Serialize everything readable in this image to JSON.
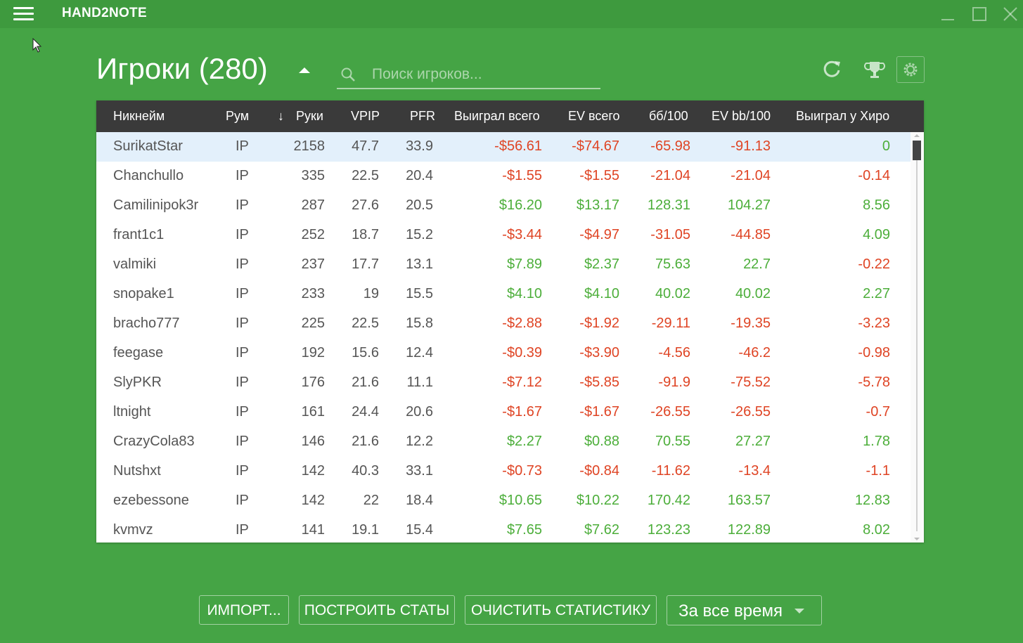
{
  "window": {
    "title": "HAND2NOTE"
  },
  "header": {
    "title": "Игроки (280)"
  },
  "search": {
    "placeholder": "Поиск игроков..."
  },
  "table": {
    "columns": [
      "Никнейм",
      "Рум",
      "Руки",
      "VPIP",
      "PFR",
      "Выиграл всего",
      "EV всего",
      "бб/100",
      "EV bb/100",
      "Выиграл у Хиро"
    ],
    "sort_indicator": "↓",
    "rows": [
      [
        "SurikatStar",
        "IP",
        "2158",
        "47.7",
        "33.9",
        "-$56.61",
        "-$74.67",
        "-65.98",
        "-91.13",
        "0"
      ],
      [
        "Chanchullo",
        "IP",
        "335",
        "22.5",
        "20.4",
        "-$1.55",
        "-$1.55",
        "-21.04",
        "-21.04",
        "-0.14"
      ],
      [
        "Camilinipok3r",
        "IP",
        "287",
        "27.6",
        "20.5",
        "$16.20",
        "$13.17",
        "128.31",
        "104.27",
        "8.56"
      ],
      [
        "frant1c1",
        "IP",
        "252",
        "18.7",
        "15.2",
        "-$3.44",
        "-$4.97",
        "-31.05",
        "-44.85",
        "4.09"
      ],
      [
        "valmiki",
        "IP",
        "237",
        "17.7",
        "13.1",
        "$7.89",
        "$2.37",
        "75.63",
        "22.7",
        "-0.22"
      ],
      [
        "snopake1",
        "IP",
        "233",
        "19",
        "15.5",
        "$4.10",
        "$4.10",
        "40.02",
        "40.02",
        "2.27"
      ],
      [
        "bracho777",
        "IP",
        "225",
        "22.5",
        "15.8",
        "-$2.88",
        "-$1.92",
        "-29.11",
        "-19.35",
        "-3.23"
      ],
      [
        "feegase",
        "IP",
        "192",
        "15.6",
        "12.4",
        "-$0.39",
        "-$3.90",
        "-4.56",
        "-46.2",
        "-0.98"
      ],
      [
        "SlyPKR",
        "IP",
        "176",
        "21.6",
        "11.1",
        "-$7.12",
        "-$5.85",
        "-91.9",
        "-75.52",
        "-5.78"
      ],
      [
        "ltnight",
        "IP",
        "161",
        "24.4",
        "20.6",
        "-$1.67",
        "-$1.67",
        "-26.55",
        "-26.55",
        "-0.7"
      ],
      [
        "CrazyCola83",
        "IP",
        "146",
        "21.6",
        "12.2",
        "$2.27",
        "$0.88",
        "70.55",
        "27.27",
        "1.78"
      ],
      [
        "Nutshxt",
        "IP",
        "142",
        "40.3",
        "33.1",
        "-$0.73",
        "-$0.84",
        "-11.62",
        "-13.4",
        "-1.1"
      ],
      [
        "ezebessone",
        "IP",
        "142",
        "22",
        "18.4",
        "$10.65",
        "$10.22",
        "170.42",
        "163.57",
        "12.83"
      ],
      [
        "kvmvz",
        "IP",
        "141",
        "19.1",
        "15.4",
        "$7.65",
        "$7.62",
        "123.23",
        "122.89",
        "8.02"
      ]
    ]
  },
  "buttons": {
    "import": "ИМПОРТ...",
    "build_stats": "ПОСТРОИТЬ СТАТЫ",
    "clear_stats": "ОЧИСТИТЬ СТАТИСТИКУ"
  },
  "period": {
    "selected": "За все время"
  },
  "colors": {
    "background": "#45a445",
    "titlebar": "#3e9a3e",
    "header_row": "#3a3a3a",
    "positive": "#4cae3a",
    "negative": "#df4424",
    "selected_row": "#e3f0fb"
  },
  "icons": [
    "menu-icon",
    "minimize-icon",
    "maximize-icon",
    "close-icon",
    "search-icon",
    "refresh-icon",
    "trophy-icon",
    "gear-icon",
    "sort-desc-icon"
  ]
}
